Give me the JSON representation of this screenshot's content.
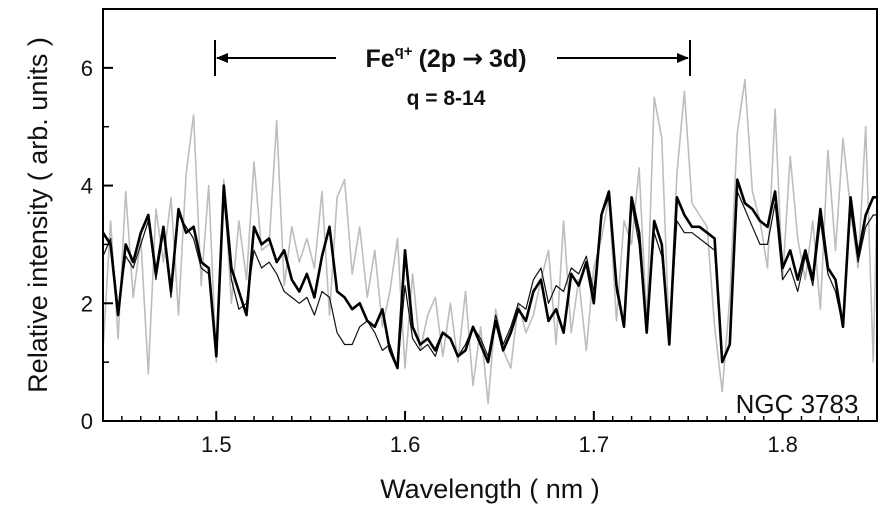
{
  "chart_data": {
    "type": "line",
    "title": "",
    "xlabel": "Wavelength  ( nm )",
    "ylabel": "Relative intensity  ( arb. units )",
    "xlim": [
      1.44,
      1.85
    ],
    "ylim": [
      0,
      7
    ],
    "xticks": [
      1.5,
      1.6,
      1.7,
      1.8
    ],
    "xtick_labels": [
      "1.5",
      "1.6",
      "1.7",
      "1.8"
    ],
    "yticks": [
      0,
      2,
      4,
      6
    ],
    "ytick_labels": [
      "0",
      "2",
      "4",
      "6"
    ],
    "grid": false,
    "annotation": {
      "species": "Fe",
      "charge_superscript": "q+",
      "transition": "(2p",
      "arrow": "→",
      "transition_end": "3d)",
      "charge_range": "q = 8-14",
      "arrow_from": 1.5,
      "arrow_to": 1.75
    },
    "object_label": "NGC 3783",
    "colors": {
      "observed": "#bdbdbd",
      "model_thick": "#000000",
      "model_thin": "#111111"
    },
    "series": [
      {
        "style": "observed",
        "x": [
          1.44,
          1.444,
          1.448,
          1.452,
          1.456,
          1.46,
          1.464,
          1.468,
          1.472,
          1.476,
          1.48,
          1.484,
          1.488,
          1.492,
          1.496,
          1.5,
          1.504,
          1.508,
          1.512,
          1.516,
          1.52,
          1.524,
          1.528,
          1.532,
          1.536,
          1.54,
          1.544,
          1.548,
          1.552,
          1.556,
          1.56,
          1.564,
          1.568,
          1.572,
          1.576,
          1.58,
          1.584,
          1.588,
          1.592,
          1.596,
          1.6,
          1.604,
          1.608,
          1.612,
          1.616,
          1.62,
          1.624,
          1.628,
          1.632,
          1.636,
          1.64,
          1.644,
          1.648,
          1.652,
          1.656,
          1.66,
          1.664,
          1.668,
          1.672,
          1.676,
          1.68,
          1.684,
          1.688,
          1.692,
          1.696,
          1.7,
          1.704,
          1.708,
          1.712,
          1.716,
          1.72,
          1.724,
          1.728,
          1.732,
          1.736,
          1.74,
          1.744,
          1.748,
          1.752,
          1.756,
          1.76,
          1.764,
          1.768,
          1.772,
          1.776,
          1.78,
          1.784,
          1.788,
          1.792,
          1.796,
          1.8,
          1.804,
          1.808,
          1.812,
          1.816,
          1.82,
          1.824,
          1.828,
          1.832,
          1.836,
          1.84,
          1.844,
          1.848,
          1.85
        ],
        "y": [
          1.2,
          3.4,
          1.4,
          3.9,
          2.1,
          3.1,
          0.8,
          3.6,
          2.7,
          3.8,
          1.8,
          4.2,
          5.2,
          2.3,
          4.0,
          1.0,
          4.1,
          2.0,
          3.4,
          2.4,
          4.4,
          2.9,
          3.0,
          5.1,
          2.3,
          3.3,
          2.7,
          3.1,
          2.6,
          3.9,
          1.8,
          3.8,
          4.1,
          2.5,
          3.3,
          2.1,
          2.9,
          1.6,
          2.2,
          3.1,
          0.9,
          2.5,
          1.2,
          1.8,
          2.1,
          1.1,
          2.0,
          1.0,
          2.2,
          0.6,
          1.6,
          0.3,
          1.9,
          1.2,
          0.9,
          2.0,
          1.5,
          1.8,
          2.4,
          2.9,
          1.3,
          3.4,
          1.5,
          2.4,
          1.2,
          2.6,
          3.1,
          3.8,
          1.7,
          3.4,
          3.0,
          4.3,
          1.7,
          5.5,
          4.8,
          1.4,
          4.2,
          5.6,
          3.7,
          3.5,
          3.3,
          1.6,
          0.5,
          2.1,
          4.9,
          5.8,
          3.9,
          3.4,
          2.6,
          5.3,
          2.4,
          4.5,
          3.1,
          2.4,
          3.4,
          1.9,
          4.6,
          2.9,
          4.8,
          3.6,
          2.6,
          5.0,
          1.0,
          3.7
        ]
      },
      {
        "style": "model_thick",
        "x": [
          1.44,
          1.444,
          1.448,
          1.452,
          1.456,
          1.46,
          1.464,
          1.468,
          1.472,
          1.476,
          1.48,
          1.484,
          1.488,
          1.492,
          1.496,
          1.5,
          1.504,
          1.508,
          1.512,
          1.516,
          1.52,
          1.524,
          1.528,
          1.532,
          1.536,
          1.54,
          1.544,
          1.548,
          1.552,
          1.556,
          1.56,
          1.564,
          1.568,
          1.572,
          1.576,
          1.58,
          1.584,
          1.588,
          1.592,
          1.596,
          1.6,
          1.604,
          1.608,
          1.612,
          1.616,
          1.62,
          1.624,
          1.628,
          1.632,
          1.636,
          1.64,
          1.644,
          1.648,
          1.652,
          1.656,
          1.66,
          1.664,
          1.668,
          1.672,
          1.676,
          1.68,
          1.684,
          1.688,
          1.692,
          1.696,
          1.7,
          1.704,
          1.708,
          1.712,
          1.716,
          1.72,
          1.724,
          1.728,
          1.732,
          1.736,
          1.74,
          1.744,
          1.748,
          1.752,
          1.756,
          1.76,
          1.764,
          1.768,
          1.772,
          1.776,
          1.78,
          1.784,
          1.788,
          1.792,
          1.796,
          1.8,
          1.804,
          1.808,
          1.812,
          1.816,
          1.82,
          1.824,
          1.828,
          1.832,
          1.836,
          1.84,
          1.844,
          1.848,
          1.85
        ],
        "y": [
          3.2,
          3.0,
          1.8,
          3.0,
          2.7,
          3.2,
          3.5,
          2.5,
          3.3,
          2.2,
          3.6,
          3.2,
          3.3,
          2.7,
          2.6,
          1.1,
          4.0,
          2.6,
          2.2,
          1.8,
          3.3,
          3.0,
          3.1,
          2.7,
          2.9,
          2.4,
          2.2,
          2.5,
          2.1,
          2.8,
          3.3,
          2.2,
          2.1,
          1.9,
          2.0,
          1.7,
          1.6,
          1.9,
          1.2,
          0.9,
          2.9,
          1.6,
          1.3,
          1.4,
          1.2,
          1.5,
          1.4,
          1.1,
          1.2,
          1.6,
          1.3,
          1.0,
          1.7,
          1.2,
          1.5,
          1.9,
          1.7,
          2.2,
          2.4,
          1.7,
          1.9,
          1.5,
          2.5,
          2.3,
          2.7,
          2.0,
          3.5,
          3.9,
          2.3,
          1.6,
          3.8,
          3.2,
          1.5,
          3.4,
          3.0,
          1.3,
          3.8,
          3.5,
          3.3,
          3.3,
          3.2,
          3.1,
          1.0,
          1.3,
          4.1,
          3.7,
          3.6,
          3.4,
          3.3,
          3.9,
          2.6,
          2.9,
          2.4,
          2.9,
          2.4,
          3.6,
          2.6,
          2.4,
          1.6,
          3.8,
          2.8,
          3.5,
          3.8,
          3.8
        ]
      },
      {
        "style": "model_thin",
        "x": [
          1.44,
          1.444,
          1.448,
          1.452,
          1.456,
          1.46,
          1.464,
          1.468,
          1.472,
          1.476,
          1.48,
          1.484,
          1.488,
          1.492,
          1.496,
          1.5,
          1.504,
          1.508,
          1.512,
          1.516,
          1.52,
          1.524,
          1.528,
          1.532,
          1.536,
          1.54,
          1.544,
          1.548,
          1.552,
          1.556,
          1.56,
          1.564,
          1.568,
          1.572,
          1.576,
          1.58,
          1.584,
          1.588,
          1.592,
          1.596,
          1.6,
          1.604,
          1.608,
          1.612,
          1.616,
          1.62,
          1.624,
          1.628,
          1.632,
          1.636,
          1.64,
          1.644,
          1.648,
          1.652,
          1.656,
          1.66,
          1.664,
          1.668,
          1.672,
          1.676,
          1.68,
          1.684,
          1.688,
          1.692,
          1.696,
          1.7,
          1.704,
          1.708,
          1.712,
          1.716,
          1.72,
          1.724,
          1.728,
          1.732,
          1.736,
          1.74,
          1.744,
          1.748,
          1.752,
          1.756,
          1.76,
          1.764,
          1.768,
          1.772,
          1.776,
          1.78,
          1.784,
          1.788,
          1.792,
          1.796,
          1.8,
          1.804,
          1.808,
          1.812,
          1.816,
          1.82,
          1.824,
          1.828,
          1.832,
          1.836,
          1.84,
          1.844,
          1.848,
          1.85
        ],
        "y": [
          2.8,
          3.1,
          1.9,
          2.8,
          2.6,
          3.0,
          3.4,
          2.4,
          3.2,
          2.1,
          3.5,
          3.3,
          3.1,
          2.6,
          2.5,
          1.3,
          3.8,
          2.4,
          1.9,
          2.0,
          2.9,
          2.6,
          2.7,
          2.5,
          2.2,
          2.1,
          2.0,
          2.1,
          1.8,
          2.2,
          2.1,
          1.5,
          1.3,
          1.3,
          1.6,
          1.7,
          1.5,
          1.2,
          1.3,
          0.9,
          2.3,
          1.4,
          1.2,
          1.3,
          1.1,
          1.5,
          1.4,
          1.1,
          1.3,
          1.6,
          1.4,
          1.1,
          1.8,
          1.3,
          1.6,
          2.0,
          1.9,
          2.4,
          2.6,
          2.0,
          2.3,
          2.2,
          2.6,
          2.5,
          2.8,
          2.2,
          3.5,
          3.8,
          2.2,
          1.6,
          3.7,
          3.0,
          1.5,
          3.2,
          2.8,
          1.4,
          3.4,
          3.2,
          3.2,
          3.1,
          3.0,
          2.9,
          1.0,
          1.3,
          3.9,
          3.6,
          3.3,
          3.0,
          3.0,
          3.7,
          2.4,
          2.6,
          2.2,
          2.8,
          2.3,
          3.4,
          2.5,
          2.2,
          1.6,
          3.6,
          2.7,
          3.3,
          3.5,
          3.5
        ]
      }
    ]
  }
}
